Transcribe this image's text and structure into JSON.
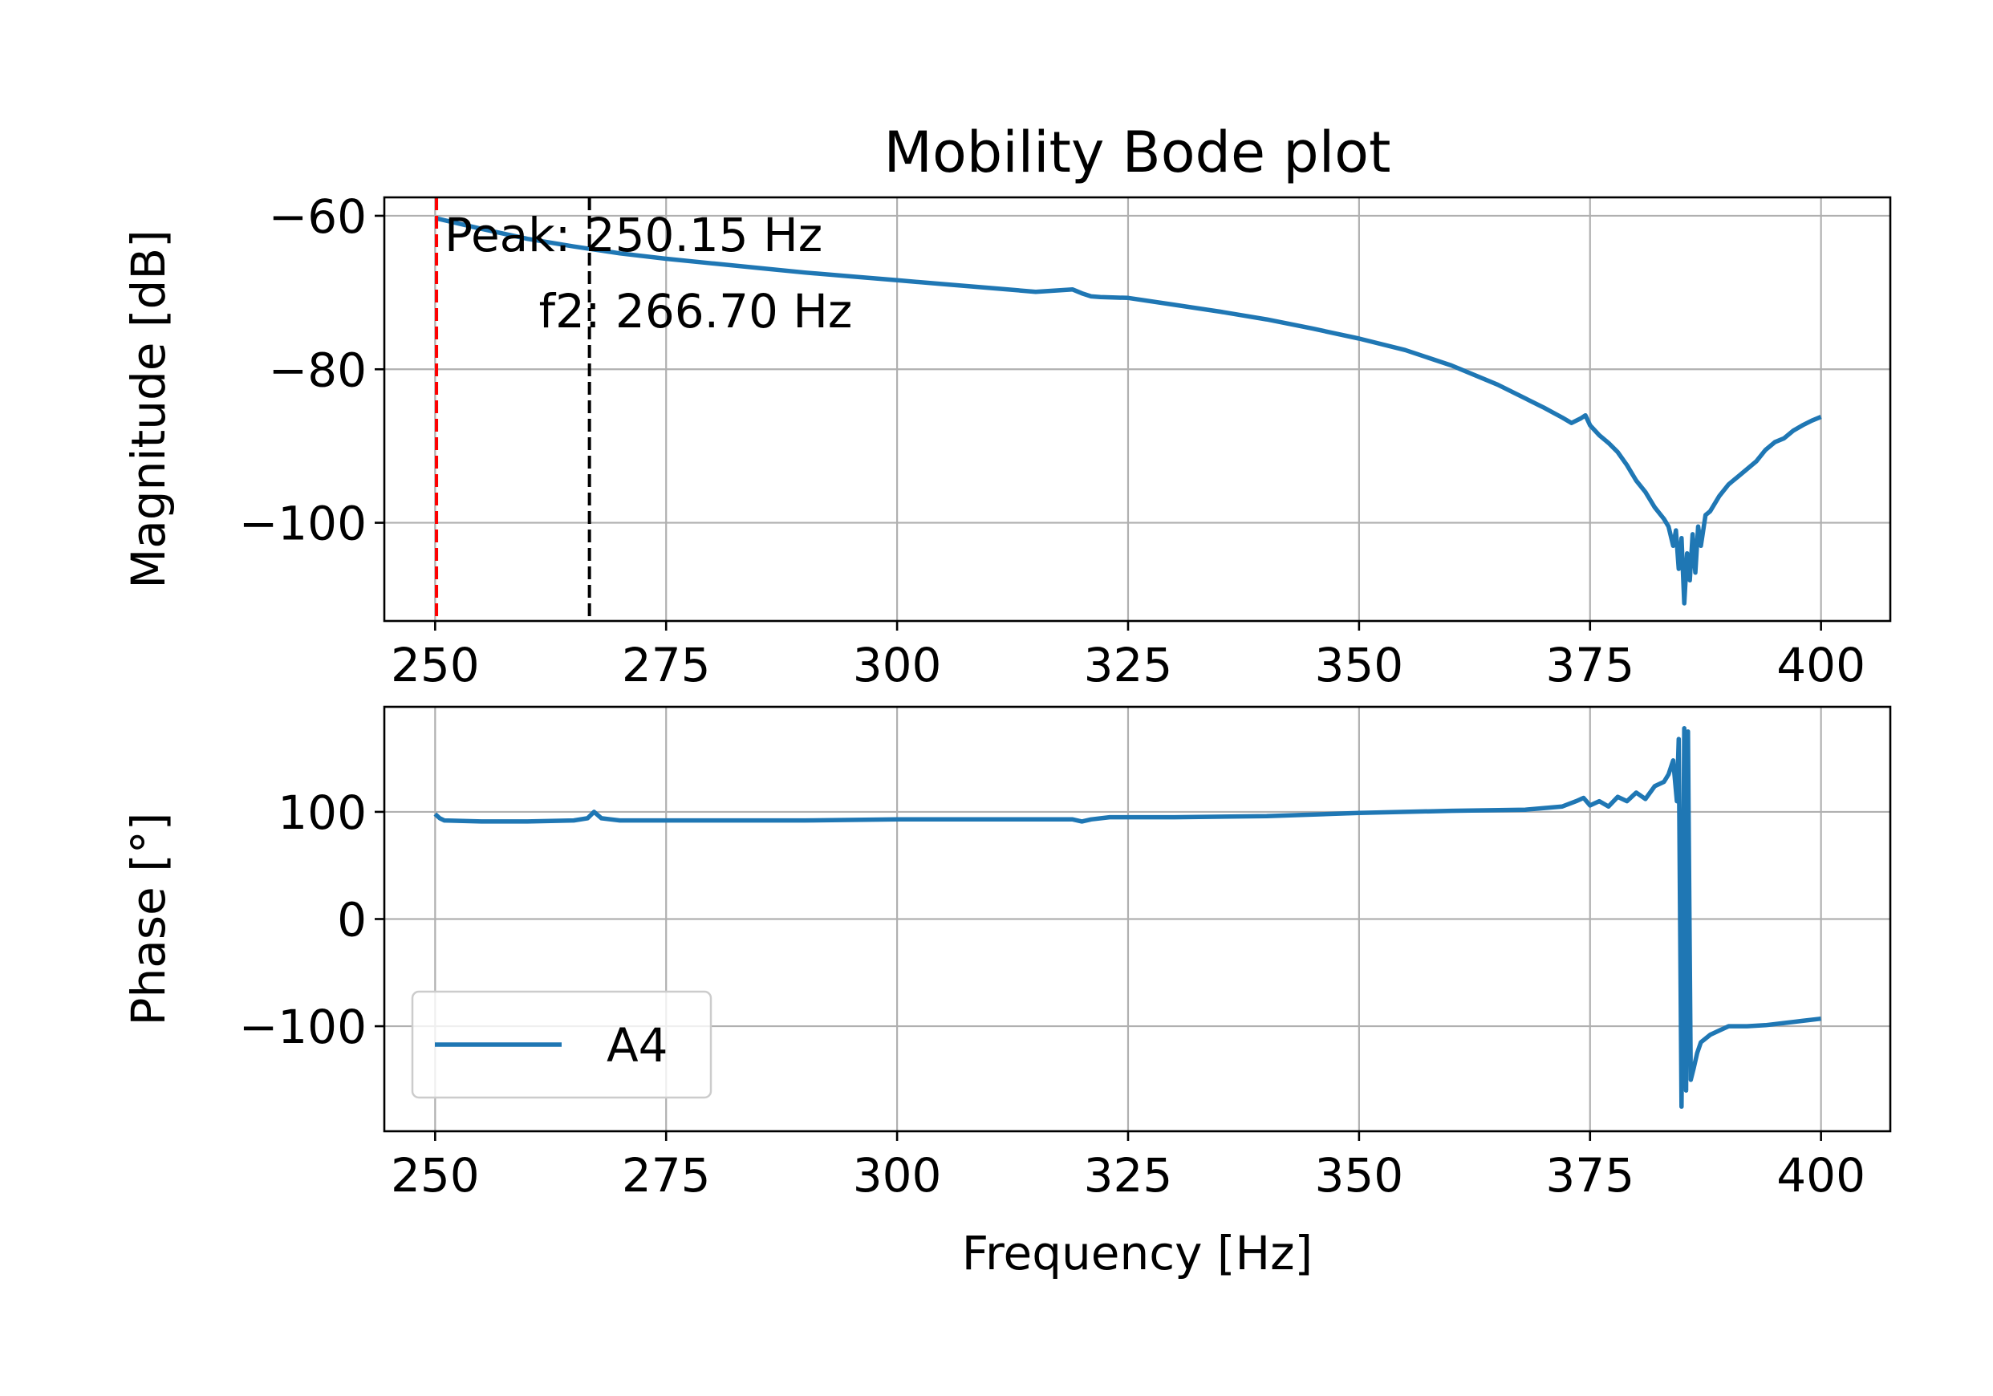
{
  "chart_data": [
    {
      "type": "line",
      "title": "Mobility Bode plot",
      "xlabel": "",
      "ylabel": "Magnitude [dB]",
      "xlim": [
        244.5,
        407.5
      ],
      "ylim": [
        -112.8,
        -57.6
      ],
      "xticks": [
        "250",
        "275",
        "300",
        "325",
        "350",
        "375",
        "400"
      ],
      "yticks": [
        "−60",
        "−80",
        "−100"
      ],
      "xtick_values": [
        250,
        275,
        300,
        325,
        350,
        375,
        400
      ],
      "ytick_values": [
        -60,
        -80,
        -100
      ],
      "grid": true,
      "colors": {
        "series": "#1f77b4",
        "peak_line": "#ff0000",
        "f2_line": "#000000"
      },
      "series": [
        {
          "name": "A4",
          "x": [
            250,
            255,
            260,
            265,
            270,
            275,
            280,
            285,
            290,
            295,
            300,
            305,
            310,
            315,
            319,
            320,
            321,
            322,
            325,
            330,
            335,
            340,
            345,
            350,
            355,
            360,
            365,
            368,
            370,
            372,
            373,
            374,
            374.5,
            375,
            376,
            377,
            378,
            379,
            380,
            381,
            382,
            383,
            383.5,
            384,
            384.3,
            384.6,
            384.9,
            385.2,
            385.5,
            385.8,
            386.1,
            386.4,
            386.7,
            387,
            387.5,
            388,
            389,
            390,
            391,
            392,
            393,
            394,
            395,
            396,
            397,
            398,
            399,
            400
          ],
          "values": [
            -60.3,
            -61.7,
            -63.0,
            -64.0,
            -64.9,
            -65.6,
            -66.2,
            -66.8,
            -67.4,
            -67.9,
            -68.4,
            -68.9,
            -69.4,
            -69.9,
            -69.6,
            -70.1,
            -70.5,
            -70.6,
            -70.7,
            -71.6,
            -72.5,
            -73.5,
            -74.7,
            -76.0,
            -77.5,
            -79.5,
            -82.0,
            -83.8,
            -85.0,
            -86.3,
            -87.0,
            -86.4,
            -86.0,
            -87.3,
            -88.6,
            -89.6,
            -90.8,
            -92.5,
            -94.5,
            -96.0,
            -98.0,
            -99.5,
            -100.5,
            -103.0,
            -101.0,
            -106.0,
            -102.0,
            -110.5,
            -104.0,
            -107.5,
            -101.5,
            -106.5,
            -100.5,
            -103.0,
            -99.0,
            -98.5,
            -96.5,
            -95.0,
            -94.0,
            -93.0,
            -92.0,
            -90.5,
            -89.5,
            -89.0,
            -88.0,
            -87.3,
            -86.7,
            -86.2
          ]
        }
      ],
      "annotations": [
        {
          "text": "Peak: 250.15 Hz",
          "x": 250.15,
          "color": "#ff0000",
          "style": "dashed vertical line"
        },
        {
          "text": "f2: 266.70 Hz",
          "x": 266.7,
          "color": "#000000",
          "style": "dashed vertical line"
        }
      ]
    },
    {
      "type": "line",
      "title": "",
      "xlabel": "Frequency [Hz]",
      "ylabel": "Phase [°]",
      "xlim": [
        244.5,
        407.5
      ],
      "ylim": [
        -198,
        198
      ],
      "xticks": [
        "250",
        "275",
        "300",
        "325",
        "350",
        "375",
        "400"
      ],
      "yticks": [
        "100",
        "0",
        "−100"
      ],
      "xtick_values": [
        250,
        275,
        300,
        325,
        350,
        375,
        400
      ],
      "ytick_values": [
        100,
        0,
        -100
      ],
      "grid": true,
      "legend": {
        "placement": "lower-left",
        "entries": [
          "A4"
        ]
      },
      "colors": {
        "series": "#1f77b4"
      },
      "series": [
        {
          "name": "A4",
          "x": [
            250,
            250.5,
            251,
            255,
            260,
            265,
            266.5,
            267.2,
            268,
            270,
            275,
            280,
            290,
            300,
            310,
            319,
            320,
            321,
            323,
            330,
            340,
            350,
            360,
            368,
            372,
            373.5,
            374.3,
            375,
            376,
            377,
            378,
            379,
            380,
            381,
            382,
            383,
            383.5,
            384,
            384.4,
            384.6,
            384.9,
            385.2,
            385.4,
            385.6,
            385.9,
            386.2,
            386.6,
            387,
            388,
            389,
            390,
            392,
            394,
            396,
            398,
            400
          ],
          "values": [
            98,
            94,
            92,
            91,
            91,
            92,
            94,
            100,
            94,
            92,
            92,
            92,
            92,
            93,
            93,
            93,
            91,
            93,
            95,
            95,
            96,
            99,
            101,
            102,
            105,
            110,
            113,
            106,
            110,
            105,
            114,
            110,
            118,
            112,
            124,
            128,
            135,
            148,
            110,
            168,
            -175,
            178,
            -160,
            175,
            -150,
            -140,
            -125,
            -115,
            -108,
            -104,
            -100,
            -100,
            -99,
            -97,
            -95,
            -93
          ]
        }
      ]
    }
  ]
}
